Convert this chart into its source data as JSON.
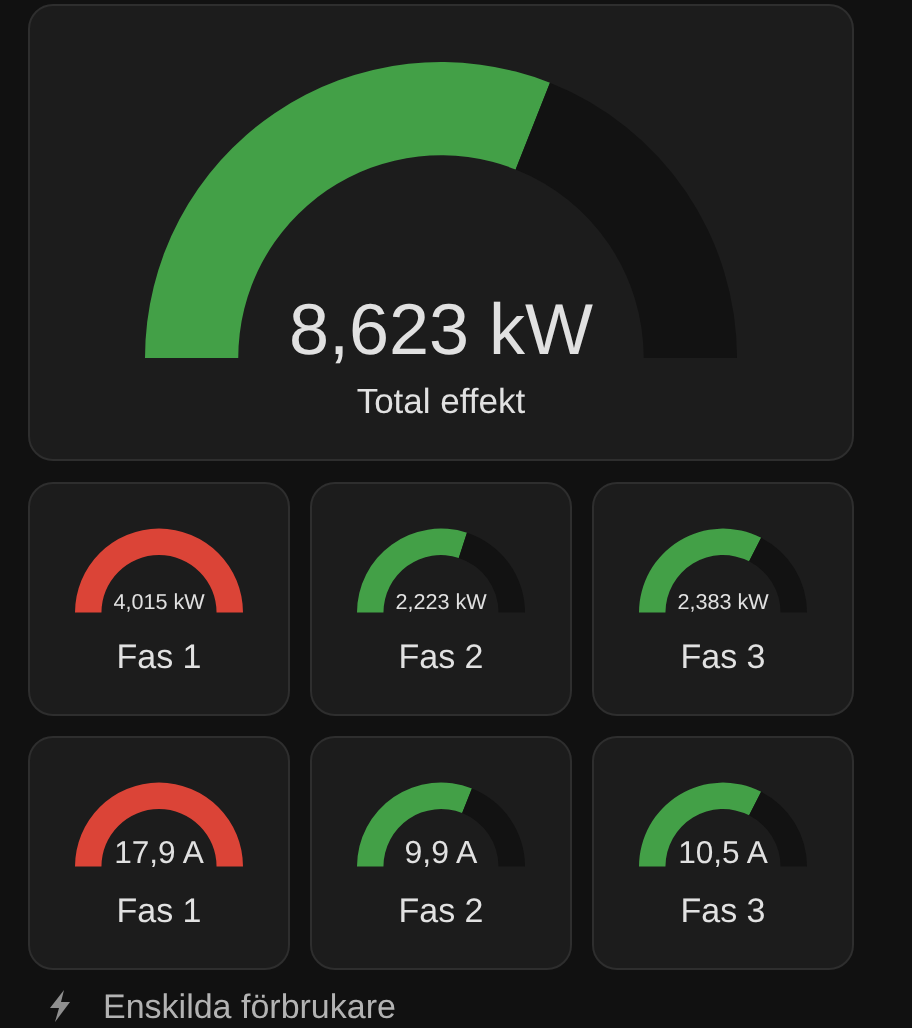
{
  "chart_data": [
    {
      "type": "donut",
      "title": "Total effekt",
      "categories": [
        null,
        null
      ],
      "values": [
        62,
        38
      ],
      "colors": [
        "#43a047",
        "#121212"
      ],
      "annotations": [
        "8,623 kW"
      ]
    },
    {
      "type": "pie",
      "title": "Fas 1",
      "categories": [
        null
      ],
      "values": [
        100
      ],
      "colors": [
        "#db4437"
      ],
      "annotations": [
        "4,015 kW"
      ]
    },
    {
      "type": "donut",
      "title": "Fas 2",
      "categories": [
        null,
        null
      ],
      "values": [
        60,
        40
      ],
      "colors": [
        "#43a047",
        "#121212"
      ],
      "annotations": [
        "2,223 kW"
      ]
    },
    {
      "type": "donut",
      "title": "Fas 3",
      "categories": [
        null,
        null
      ],
      "values": [
        65,
        35
      ],
      "colors": [
        "#43a047",
        "#121212"
      ],
      "annotations": [
        "2,383 kW"
      ]
    },
    {
      "type": "pie",
      "title": "Fas 1",
      "categories": [
        null
      ],
      "values": [
        100
      ],
      "colors": [
        "#db4437"
      ],
      "annotations": [
        "17,9 A"
      ]
    },
    {
      "type": "donut",
      "title": "Fas 2",
      "categories": [
        null,
        null
      ],
      "values": [
        62,
        38
      ],
      "colors": [
        "#43a047",
        "#121212"
      ],
      "annotations": [
        "9,9 A"
      ]
    },
    {
      "type": "donut",
      "title": "Fas 3",
      "categories": [
        null,
        null
      ],
      "values": [
        65,
        35
      ],
      "colors": [
        "#43a047",
        "#121212"
      ],
      "annotations": [
        "10,5 A"
      ]
    },
    {
      "type": "other",
      "title": "Enskilda förbrukare"
    }
  ]
}
